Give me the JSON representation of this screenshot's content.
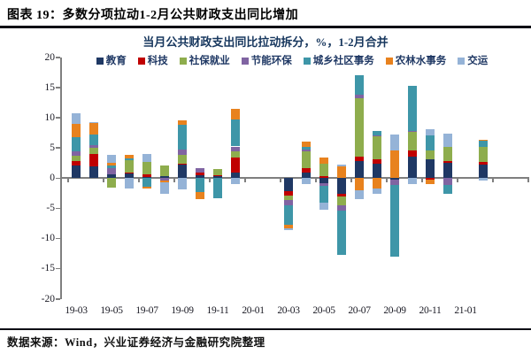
{
  "header": {
    "title": "图表 19：多数分项拉动1-2月公共财政支出同比增加"
  },
  "footer": {
    "text": "数据来源：Wind，兴业证券经济与金融研究院整理"
  },
  "chart_data": {
    "type": "bar",
    "stacked": true,
    "title": "当月公共财政支出同比拉动拆分，%，1-2月合并",
    "ylabel": "",
    "xlabel": "",
    "ylim": [
      -20,
      20
    ],
    "grid": false,
    "legend_position": "top",
    "y_ticks": [
      20,
      15,
      10,
      5,
      0,
      -5,
      -10,
      -15,
      -20
    ],
    "categories": [
      "19-03",
      "19-04",
      "19-05",
      "19-06",
      "19-07",
      "19-08",
      "19-09",
      "19-10",
      "19-11",
      "19-12",
      "20-01",
      "20-02",
      "20-03",
      "20-04",
      "20-05",
      "20-06",
      "20-07",
      "20-08",
      "20-09",
      "20-10",
      "20-11",
      "20-12",
      "21-01",
      "21-02"
    ],
    "x_tick_labels": [
      "19-03",
      "19-05",
      "19-07",
      "19-09",
      "19-11",
      "20-01",
      "20-03",
      "20-05",
      "20-07",
      "20-09",
      "20-11",
      "21-01"
    ],
    "empty_slots": [
      "20-01",
      "20-02",
      "21-01"
    ],
    "series": [
      {
        "name": "教育",
        "color": "#1f3864",
        "values": [
          2.0,
          1.85,
          0.55,
          0.85,
          0.15,
          0.3,
          2.15,
          0.5,
          0.35,
          0.9,
          null,
          null,
          -2.2,
          0.95,
          -0.9,
          -2.6,
          2.8,
          2.35,
          -0.3,
          3.45,
          3.1,
          2.5,
          null,
          2.2
        ]
      },
      {
        "name": "科技",
        "color": "#c00000",
        "values": [
          0.8,
          2.15,
          0,
          0.1,
          0.45,
          0,
          0.25,
          0.35,
          0.15,
          2.5,
          null,
          null,
          -0.75,
          0.65,
          0.25,
          -0.5,
          0.7,
          0.75,
          0,
          1.05,
          -0.35,
          0.35,
          null,
          0.5
        ]
      },
      {
        "name": "社保就业",
        "color": "#8ead4d",
        "values": [
          0.9,
          1.0,
          -1.55,
          1.95,
          2.0,
          1.8,
          1.4,
          0,
          0.9,
          1.0,
          null,
          null,
          -0.65,
          2.8,
          2.15,
          -1.45,
          9.7,
          3.9,
          0,
          3.05,
          1.4,
          2.25,
          null,
          2.4
        ]
      },
      {
        "name": "节能环保",
        "color": "#8064a2",
        "values": [
          0.7,
          0.4,
          1.05,
          0,
          0,
          -0.5,
          0.85,
          0.75,
          0,
          0.8,
          null,
          null,
          -0.9,
          0.3,
          -0.4,
          -0.85,
          0.6,
          0.1,
          -0.9,
          0.15,
          0,
          -1.15,
          null,
          0
        ]
      },
      {
        "name": "城乡社区事务",
        "color": "#3e96a8",
        "values": [
          2.4,
          1.8,
          0.5,
          0.3,
          -1.45,
          0,
          4.2,
          -2.3,
          -3.3,
          4.4,
          null,
          null,
          -3.2,
          0.5,
          -2.85,
          -7.35,
          3.2,
          0.65,
          -11.9,
          7.6,
          2.5,
          -1.5,
          null,
          1.0
        ]
      },
      {
        "name": "农林水事务",
        "color": "#e8821e",
        "values": [
          2.1,
          2.0,
          0.4,
          0.65,
          -0.35,
          -0.3,
          0.7,
          -1.15,
          0,
          1.9,
          null,
          null,
          -0.6,
          0.85,
          1.0,
          1.9,
          -2.0,
          -1.75,
          4.5,
          0,
          -0.65,
          0,
          null,
          0.15
        ]
      },
      {
        "name": "交运",
        "color": "#95b3d7",
        "values": [
          1.75,
          0.1,
          1.35,
          -1.7,
          1.35,
          -1.9,
          -1.85,
          0,
          0,
          -1.05,
          null,
          null,
          -0.35,
          -1.0,
          -1.15,
          0.25,
          -1.45,
          -0.85,
          2.7,
          -1.0,
          1.05,
          2.25,
          null,
          -0.5
        ]
      }
    ]
  }
}
